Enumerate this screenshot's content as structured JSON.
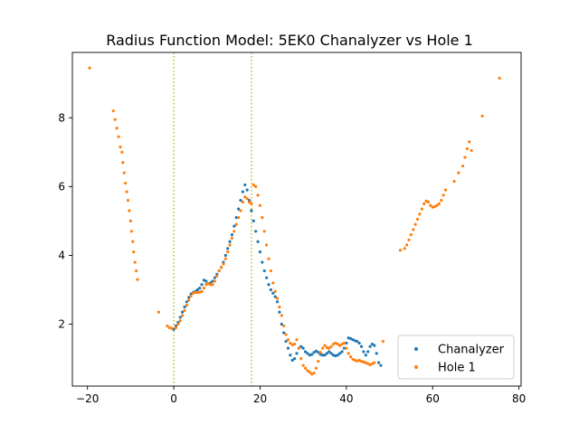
{
  "chart_data": {
    "type": "scatter",
    "title": "Radius Function Model: 5EK0 Chanalyzer vs Hole 1",
    "xlabel": "",
    "ylabel": "",
    "xlim": [
      -23.5,
      80.5
    ],
    "ylim": [
      0.2,
      9.9
    ],
    "x_ticks": [
      -20,
      0,
      20,
      40,
      60,
      80
    ],
    "y_ticks": [
      2,
      4,
      6,
      8
    ],
    "vertical_lines": [
      {
        "x": 0,
        "color": "#bcbd22",
        "style": "dotted"
      },
      {
        "x": 18,
        "color": "#bcbd22",
        "style": "dotted"
      }
    ],
    "legend": {
      "position": "lower-right"
    },
    "series": [
      {
        "name": "Chanalyzer",
        "color": "#1f77b4",
        "points": [
          [
            0,
            1.85
          ],
          [
            0.5,
            1.95
          ],
          [
            1,
            2.05
          ],
          [
            1.5,
            2.2
          ],
          [
            2,
            2.35
          ],
          [
            2.5,
            2.5
          ],
          [
            3,
            2.65
          ],
          [
            3.5,
            2.78
          ],
          [
            4,
            2.88
          ],
          [
            4.5,
            2.92
          ],
          [
            5,
            2.95
          ],
          [
            5.5,
            3.0
          ],
          [
            6,
            3.05
          ],
          [
            6.5,
            3.15
          ],
          [
            7,
            3.28
          ],
          [
            7.5,
            3.25
          ],
          [
            8,
            3.18
          ],
          [
            8.5,
            3.2
          ],
          [
            9,
            3.25
          ],
          [
            9.5,
            3.35
          ],
          [
            10,
            3.45
          ],
          [
            10.5,
            3.55
          ],
          [
            11,
            3.65
          ],
          [
            11.5,
            3.8
          ],
          [
            12,
            4.0
          ],
          [
            12.5,
            4.2
          ],
          [
            13,
            4.4
          ],
          [
            13.5,
            4.6
          ],
          [
            14,
            4.85
          ],
          [
            14.5,
            5.1
          ],
          [
            15,
            5.35
          ],
          [
            15.5,
            5.6
          ],
          [
            16,
            5.85
          ],
          [
            16.5,
            6.05
          ],
          [
            17,
            5.9
          ],
          [
            17.5,
            5.6
          ],
          [
            18,
            5.3
          ],
          [
            18.5,
            5.0
          ],
          [
            19,
            4.7
          ],
          [
            19.5,
            4.4
          ],
          [
            20,
            4.1
          ],
          [
            20.5,
            3.8
          ],
          [
            21,
            3.55
          ],
          [
            21.5,
            3.35
          ],
          [
            22,
            3.15
          ],
          [
            22.5,
            3.0
          ],
          [
            23,
            2.9
          ],
          [
            23.5,
            2.8
          ],
          [
            24,
            2.65
          ],
          [
            24.5,
            2.35
          ],
          [
            25,
            2.0
          ],
          [
            25.5,
            1.75
          ],
          [
            26,
            1.5
          ],
          [
            26.5,
            1.3
          ],
          [
            27,
            1.1
          ],
          [
            27.5,
            0.95
          ],
          [
            28,
            1.0
          ],
          [
            28.5,
            1.15
          ],
          [
            29,
            1.3
          ],
          [
            29.5,
            1.35
          ],
          [
            30,
            1.3
          ],
          [
            30.5,
            1.2
          ],
          [
            31,
            1.15
          ],
          [
            31.5,
            1.1
          ],
          [
            32,
            1.12
          ],
          [
            32.5,
            1.18
          ],
          [
            33,
            1.22
          ],
          [
            33.5,
            1.18
          ],
          [
            34,
            1.12
          ],
          [
            34.5,
            1.1
          ],
          [
            35,
            1.1
          ],
          [
            35.5,
            1.15
          ],
          [
            36,
            1.2
          ],
          [
            36.5,
            1.15
          ],
          [
            37,
            1.1
          ],
          [
            37.5,
            1.08
          ],
          [
            38,
            1.1
          ],
          [
            38.5,
            1.15
          ],
          [
            39,
            1.2
          ],
          [
            39.5,
            1.3
          ],
          [
            40,
            1.45
          ],
          [
            40.5,
            1.6
          ],
          [
            41,
            1.58
          ],
          [
            41.5,
            1.55
          ],
          [
            42,
            1.52
          ],
          [
            42.5,
            1.5
          ],
          [
            43,
            1.45
          ],
          [
            43.5,
            1.35
          ],
          [
            44,
            1.2
          ],
          [
            44.5,
            1.1
          ],
          [
            45,
            1.2
          ],
          [
            45.5,
            1.35
          ],
          [
            46,
            1.42
          ],
          [
            46.5,
            1.38
          ],
          [
            47,
            1.15
          ],
          [
            47.5,
            0.88
          ],
          [
            48,
            0.8
          ]
        ]
      },
      {
        "name": "Hole 1",
        "color": "#ff7f0e",
        "points": [
          [
            -19.5,
            9.45
          ],
          [
            -14,
            8.2
          ],
          [
            -13.6,
            7.95
          ],
          [
            -13.2,
            7.7
          ],
          [
            -12.8,
            7.45
          ],
          [
            -12.4,
            7.15
          ],
          [
            -12,
            7.0
          ],
          [
            -11.8,
            6.7
          ],
          [
            -11.5,
            6.4
          ],
          [
            -11.2,
            6.1
          ],
          [
            -10.9,
            5.85
          ],
          [
            -10.6,
            5.6
          ],
          [
            -10.3,
            5.3
          ],
          [
            -10,
            5.0
          ],
          [
            -9.8,
            4.7
          ],
          [
            -9.5,
            4.4
          ],
          [
            -9.3,
            4.1
          ],
          [
            -9,
            3.8
          ],
          [
            -8.7,
            3.55
          ],
          [
            -8.4,
            3.3
          ],
          [
            -3.5,
            2.35
          ],
          [
            -1.5,
            1.95
          ],
          [
            -1,
            1.9
          ],
          [
            -0.5,
            1.88
          ],
          [
            0.5,
            1.9
          ],
          [
            1,
            2.0
          ],
          [
            1.5,
            2.1
          ],
          [
            2,
            2.25
          ],
          [
            2.5,
            2.4
          ],
          [
            3,
            2.55
          ],
          [
            3.5,
            2.7
          ],
          [
            4,
            2.82
          ],
          [
            4.5,
            2.9
          ],
          [
            5,
            2.92
          ],
          [
            5.5,
            2.92
          ],
          [
            6,
            2.93
          ],
          [
            6.5,
            2.95
          ],
          [
            7,
            3.05
          ],
          [
            7.5,
            3.15
          ],
          [
            8,
            3.18
          ],
          [
            8.5,
            3.15
          ],
          [
            9,
            3.15
          ],
          [
            9.5,
            3.25
          ],
          [
            10,
            3.4
          ],
          [
            10.5,
            3.55
          ],
          [
            11,
            3.65
          ],
          [
            11.5,
            3.75
          ],
          [
            12,
            3.9
          ],
          [
            12.5,
            4.1
          ],
          [
            13,
            4.3
          ],
          [
            13.5,
            4.5
          ],
          [
            14,
            4.7
          ],
          [
            14.5,
            4.9
          ],
          [
            15,
            5.1
          ],
          [
            15.5,
            5.3
          ],
          [
            16,
            5.55
          ],
          [
            16.5,
            5.7
          ],
          [
            17,
            5.65
          ],
          [
            17.5,
            5.55
          ],
          [
            18,
            5.5
          ],
          [
            18.5,
            6.05
          ],
          [
            19,
            6.0
          ],
          [
            19.5,
            5.75
          ],
          [
            20,
            5.45
          ],
          [
            20.5,
            5.1
          ],
          [
            21,
            4.7
          ],
          [
            21.5,
            4.3
          ],
          [
            22,
            3.9
          ],
          [
            22.5,
            3.55
          ],
          [
            23,
            3.2
          ],
          [
            23.5,
            2.95
          ],
          [
            24,
            2.75
          ],
          [
            24.5,
            2.5
          ],
          [
            25,
            2.25
          ],
          [
            25.5,
            1.95
          ],
          [
            26,
            1.7
          ],
          [
            26.5,
            1.55
          ],
          [
            27,
            1.45
          ],
          [
            27.5,
            1.4
          ],
          [
            28,
            1.42
          ],
          [
            28.5,
            1.55
          ],
          [
            29,
            1.3
          ],
          [
            29.5,
            1.0
          ],
          [
            30,
            0.8
          ],
          [
            30.5,
            0.72
          ],
          [
            31,
            0.65
          ],
          [
            31.5,
            0.6
          ],
          [
            32,
            0.55
          ],
          [
            32.5,
            0.58
          ],
          [
            33,
            0.72
          ],
          [
            33.5,
            0.92
          ],
          [
            34,
            1.18
          ],
          [
            34.5,
            1.3
          ],
          [
            35,
            1.38
          ],
          [
            35.5,
            1.32
          ],
          [
            36,
            1.3
          ],
          [
            36.5,
            1.35
          ],
          [
            37,
            1.42
          ],
          [
            37.5,
            1.45
          ],
          [
            38,
            1.42
          ],
          [
            38.5,
            1.38
          ],
          [
            39,
            1.42
          ],
          [
            39.5,
            1.45
          ],
          [
            40,
            1.3
          ],
          [
            40.5,
            1.15
          ],
          [
            41,
            1.05
          ],
          [
            41.5,
            0.98
          ],
          [
            42,
            0.95
          ],
          [
            42.5,
            0.93
          ],
          [
            43,
            0.95
          ],
          [
            43.5,
            0.92
          ],
          [
            44,
            0.9
          ],
          [
            44.5,
            0.88
          ],
          [
            45,
            0.85
          ],
          [
            45.5,
            0.82
          ],
          [
            46,
            0.85
          ],
          [
            46.5,
            0.88
          ],
          [
            48.5,
            1.5
          ],
          [
            52.5,
            4.15
          ],
          [
            53.5,
            4.2
          ],
          [
            54,
            4.3
          ],
          [
            54.5,
            4.45
          ],
          [
            55,
            4.6
          ],
          [
            55.5,
            4.75
          ],
          [
            56,
            4.9
          ],
          [
            56.5,
            5.05
          ],
          [
            57,
            5.2
          ],
          [
            57.5,
            5.35
          ],
          [
            58,
            5.5
          ],
          [
            58.5,
            5.58
          ],
          [
            59,
            5.55
          ],
          [
            59.5,
            5.45
          ],
          [
            60,
            5.4
          ],
          [
            60.5,
            5.42
          ],
          [
            61,
            5.45
          ],
          [
            61.5,
            5.5
          ],
          [
            62,
            5.6
          ],
          [
            62.5,
            5.75
          ],
          [
            63,
            5.9
          ],
          [
            65,
            6.15
          ],
          [
            66,
            6.4
          ],
          [
            67,
            6.6
          ],
          [
            67.5,
            6.85
          ],
          [
            68,
            7.1
          ],
          [
            68.5,
            7.3
          ],
          [
            69,
            7.05
          ],
          [
            71.5,
            8.05
          ],
          [
            75.5,
            9.15
          ]
        ]
      }
    ]
  }
}
